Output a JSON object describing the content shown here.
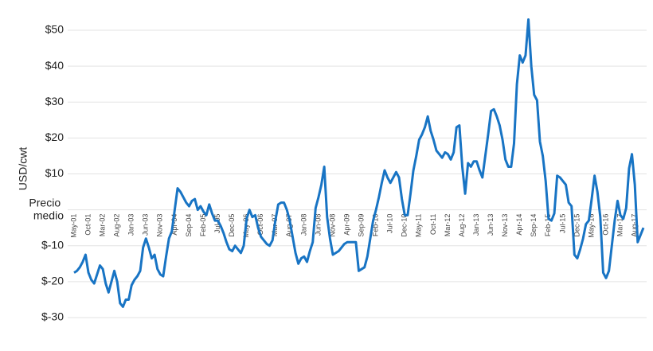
{
  "chart_data": {
    "type": "line",
    "y_label": "USD/cwt",
    "categories": [
      "May-01",
      null,
      null,
      null,
      null,
      "Oct-01",
      null,
      null,
      null,
      null,
      "Mar-02",
      null,
      null,
      null,
      null,
      "Aug-02",
      null,
      null,
      null,
      null,
      "Jan-03",
      null,
      null,
      null,
      null,
      "Jun-03",
      null,
      null,
      null,
      null,
      "Nov-03",
      null,
      null,
      null,
      null,
      "Apr-04",
      null,
      null,
      null,
      null,
      "Sep-04",
      null,
      null,
      null,
      null,
      "Feb-05",
      null,
      null,
      null,
      null,
      "Jul-05",
      null,
      null,
      null,
      null,
      "Dec-05",
      null,
      null,
      null,
      null,
      "May-06",
      null,
      null,
      null,
      null,
      "Oct-06",
      null,
      null,
      null,
      null,
      "Mar-07",
      null,
      null,
      null,
      null,
      "Aug-07",
      null,
      null,
      null,
      null,
      "Jan-08",
      null,
      null,
      null,
      null,
      "Jun-08",
      null,
      null,
      null,
      null,
      "Nov-08",
      null,
      null,
      null,
      null,
      "Apr-09",
      null,
      null,
      null,
      null,
      "Sep-09",
      null,
      null,
      null,
      null,
      "Feb-10",
      null,
      null,
      null,
      null,
      "Jul-10",
      null,
      null,
      null,
      null,
      "Dec-10",
      null,
      null,
      null,
      null,
      "May-11",
      null,
      null,
      null,
      null,
      "Oct-11",
      null,
      null,
      null,
      null,
      "Mar-12",
      null,
      null,
      null,
      null,
      "Aug-12",
      null,
      null,
      null,
      null,
      "Jan-13",
      null,
      null,
      null,
      null,
      "Jun-13",
      null,
      null,
      null,
      null,
      "Nov-13",
      null,
      null,
      null,
      null,
      "Apr-14",
      null,
      null,
      null,
      null,
      "Sep-14",
      null,
      null,
      null,
      null,
      "Feb-15",
      null,
      null,
      null,
      null,
      "Jul-15",
      null,
      null,
      null,
      null,
      "Dec-15",
      null,
      null,
      null,
      null,
      "May-16",
      null,
      null,
      null,
      null,
      "Oct-16",
      null,
      null,
      null,
      null,
      "Mar-17",
      null,
      null,
      null,
      null,
      "Aug-17",
      null,
      null,
      null
    ],
    "values": [
      -17.5,
      -17,
      -16,
      -14.5,
      -12.5,
      -17.5,
      -19.5,
      -20.5,
      -18,
      -15.5,
      -16.5,
      -20.5,
      -23,
      -20,
      -17,
      -20,
      -26,
      -27,
      -25,
      -25,
      -21,
      -19.5,
      -18.5,
      -17,
      -10.5,
      -8,
      -10.5,
      -13.5,
      -12.5,
      -16.5,
      -18,
      -18.5,
      -13,
      -8,
      -6,
      0,
      6,
      5,
      3.5,
      2,
      1,
      2.5,
      3,
      0,
      1,
      -0.5,
      -1.5,
      1.5,
      -1,
      -3,
      -3,
      -4.5,
      -6.5,
      -9,
      -11,
      -11.5,
      -10,
      -11,
      -12,
      -10,
      -2.5,
      0,
      -2,
      -1.5,
      -5,
      -7.5,
      -8.5,
      -9.5,
      -10,
      -8.5,
      -3,
      1.5,
      2,
      2,
      0,
      -3,
      -7.5,
      -12,
      -15,
      -13.5,
      -13,
      -14.5,
      -11.5,
      -9,
      0.5,
      3.5,
      7,
      12,
      -2,
      -8,
      -12.5,
      -12,
      -11.5,
      -10.5,
      -9.5,
      -9,
      -9,
      -9,
      -9,
      -17,
      -16.5,
      -16,
      -13,
      -8,
      -3,
      0,
      3.5,
      7.5,
      11,
      9,
      7.5,
      9,
      10.5,
      9,
      3,
      -1.5,
      -1.5,
      4.5,
      11,
      15,
      19.5,
      21,
      23,
      26,
      22,
      19.5,
      16.5,
      15.5,
      14.5,
      16,
      15.5,
      14,
      16,
      23,
      23.5,
      12,
      4.5,
      13,
      12,
      13.5,
      13.5,
      11,
      9,
      15,
      21,
      27.5,
      28,
      26,
      23.5,
      19.5,
      14,
      12,
      12,
      18.5,
      35,
      43,
      41,
      43,
      53,
      40,
      32,
      30.5,
      19,
      15,
      8,
      -2.5,
      -3,
      -1,
      9.5,
      9,
      8,
      7,
      2,
      1,
      -12.5,
      -13.5,
      -11,
      -8,
      -4,
      -3,
      3,
      9.5,
      5,
      -2,
      -17.5,
      -19,
      -17,
      -10,
      -3,
      2.5,
      -1.5,
      -2.5,
      0.5,
      11.5,
      15.5,
      7,
      -9,
      -7,
      -5
    ],
    "color": "#1874c4",
    "ylim": [
      -30,
      50
    ],
    "yticks": [
      {
        "value": -30,
        "label": "$-30"
      },
      {
        "value": -20,
        "label": "$-20"
      },
      {
        "value": -10,
        "label": "$-10"
      },
      {
        "value": 0,
        "label": "Precio medio"
      },
      {
        "value": 10,
        "label": "$10"
      },
      {
        "value": 20,
        "label": "$20"
      },
      {
        "value": 30,
        "label": "$30"
      },
      {
        "value": 40,
        "label": "$40"
      },
      {
        "value": 50,
        "label": "$50"
      }
    ],
    "grid": true
  }
}
